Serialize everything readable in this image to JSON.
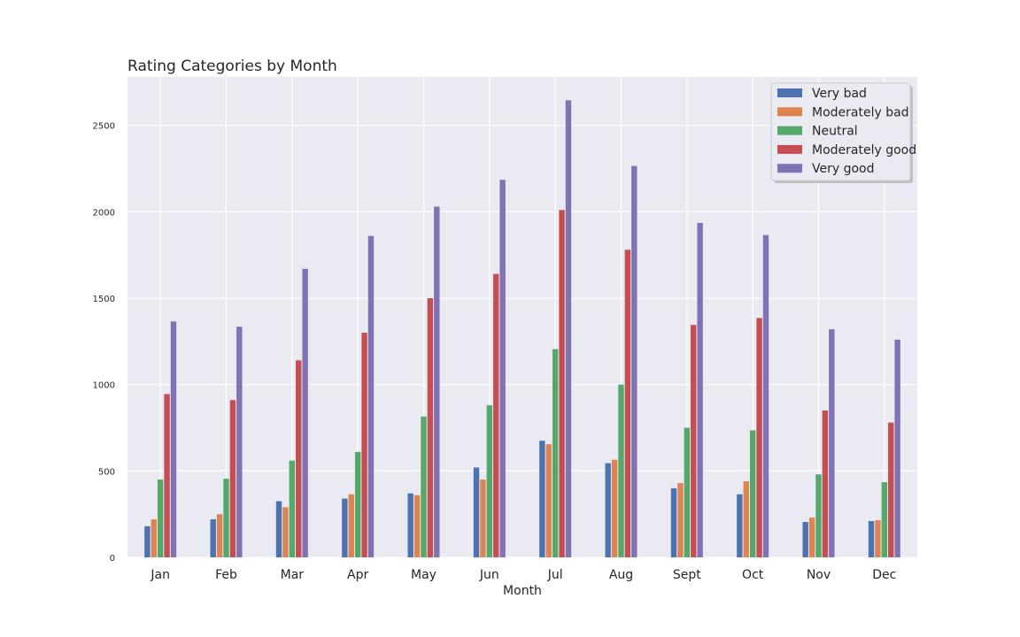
{
  "chart_data": {
    "type": "bar",
    "title": "Rating Categories by Month",
    "xlabel": "Month",
    "ylabel": "",
    "categories": [
      "Jan",
      "Feb",
      "Mar",
      "Apr",
      "May",
      "Jun",
      "Jul",
      "Aug",
      "Sept",
      "Oct",
      "Nov",
      "Dec"
    ],
    "ylim": [
      0,
      2780
    ],
    "yticks": [
      0,
      500,
      1000,
      1500,
      2000,
      2500
    ],
    "grid": true,
    "legend_position": "top-right",
    "series": [
      {
        "name": "Very bad",
        "color": "#4c72b0",
        "values": [
          180,
          220,
          325,
          340,
          370,
          520,
          675,
          545,
          400,
          365,
          205,
          210
        ]
      },
      {
        "name": "Moderately bad",
        "color": "#dd8452",
        "values": [
          220,
          250,
          290,
          365,
          360,
          450,
          655,
          565,
          430,
          440,
          230,
          215
        ]
      },
      {
        "name": "Neutral",
        "color": "#55a868",
        "values": [
          450,
          455,
          560,
          610,
          815,
          880,
          1205,
          1000,
          750,
          735,
          480,
          435
        ]
      },
      {
        "name": "Moderately good",
        "color": "#c44e52",
        "values": [
          945,
          910,
          1140,
          1300,
          1500,
          1640,
          2010,
          1780,
          1345,
          1385,
          850,
          780
        ]
      },
      {
        "name": "Very good",
        "color": "#8172b3",
        "values": [
          1365,
          1335,
          1670,
          1860,
          2030,
          2185,
          2645,
          2265,
          1935,
          1865,
          1320,
          1260
        ]
      }
    ]
  }
}
